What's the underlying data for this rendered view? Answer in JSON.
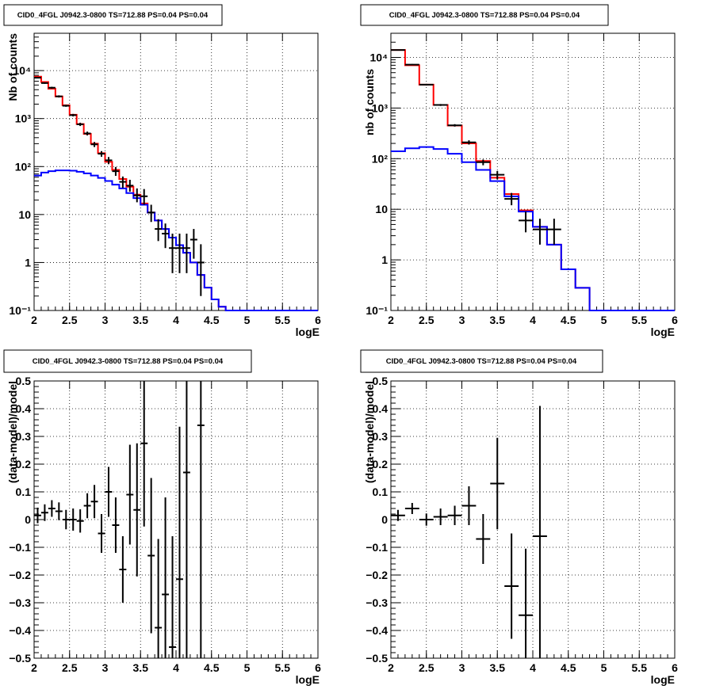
{
  "chart_data": [
    {
      "type": "step",
      "title": "CID0_4FGL J0942.3-0800 TS=712.88 PS=0.04 PS=0.04",
      "xlabel": "logE",
      "ylabel": "Nb of counts",
      "ylog": true,
      "xlim": [
        2,
        6
      ],
      "ylim": [
        0.1,
        60000
      ],
      "grid": true,
      "xticks": [
        "2",
        "2.5",
        "3",
        "3.5",
        "4",
        "4.5",
        "5",
        "5.5",
        "6"
      ],
      "yticks": [
        {
          "v": 0.1,
          "label": "10⁻¹"
        },
        {
          "v": 1,
          "label": "1"
        },
        {
          "v": 10,
          "label": "10"
        },
        {
          "v": 100,
          "label": "10²"
        },
        {
          "v": 1000,
          "label": "10³"
        },
        {
          "v": 10000,
          "label": "10⁴"
        }
      ],
      "bin_edges": [
        2.0,
        2.1,
        2.2,
        2.3,
        2.4,
        2.5,
        2.6,
        2.7,
        2.8,
        2.9,
        3.0,
        3.1,
        3.2,
        3.3,
        3.4,
        3.5,
        3.6,
        3.7,
        3.8,
        3.9,
        4.0,
        4.1,
        4.2,
        4.3,
        4.4,
        4.5,
        4.6,
        4.7,
        4.8,
        4.9,
        5.0,
        5.1,
        5.2,
        5.3,
        5.4,
        5.5,
        5.6,
        5.7,
        5.8,
        5.9,
        6.0
      ],
      "series": [
        {
          "color": "#ff0000",
          "values": [
            7500,
            5800,
            4200,
            2900,
            1900,
            1200,
            770,
            480,
            300,
            190,
            125,
            85,
            55,
            38,
            26,
            17,
            11,
            7.5,
            5,
            3.3,
            2.3,
            1.6,
            1.0,
            0.55,
            0.3,
            0.17,
            0.12,
            0.1,
            0.09,
            0.09,
            0.09,
            0.09,
            0.09,
            0.09,
            0.09,
            0.09,
            0.09,
            0.09,
            0.09,
            0.09
          ]
        },
        {
          "color": "#0000ff",
          "values": [
            65,
            75,
            80,
            83,
            83,
            82,
            78,
            72,
            65,
            58,
            50,
            42,
            35,
            28,
            22,
            16,
            11,
            7.5,
            5,
            3.3,
            2.3,
            1.6,
            1.0,
            0.55,
            0.3,
            0.17,
            0.12,
            0.1,
            0.09,
            0.09,
            0.09,
            0.09,
            0.09,
            0.09,
            0.09,
            0.09,
            0.09,
            0.09,
            0.09,
            0.09
          ]
        }
      ],
      "points": [
        {
          "x": 2.05,
          "y": 7100,
          "lo": 6900,
          "hi": 7300
        },
        {
          "x": 2.15,
          "y": 5500,
          "lo": 5300,
          "hi": 5700
        },
        {
          "x": 2.25,
          "y": 4400,
          "lo": 4200,
          "hi": 4600
        },
        {
          "x": 2.35,
          "y": 2900,
          "lo": 2750,
          "hi": 3050
        },
        {
          "x": 2.45,
          "y": 1850,
          "lo": 1760,
          "hi": 1940
        },
        {
          "x": 2.55,
          "y": 1180,
          "lo": 1110,
          "hi": 1250
        },
        {
          "x": 2.65,
          "y": 760,
          "lo": 700,
          "hi": 820
        },
        {
          "x": 2.75,
          "y": 490,
          "lo": 445,
          "hi": 535
        },
        {
          "x": 2.85,
          "y": 290,
          "lo": 255,
          "hi": 325
        },
        {
          "x": 2.95,
          "y": 185,
          "lo": 160,
          "hi": 210
        },
        {
          "x": 3.05,
          "y": 135,
          "lo": 112,
          "hi": 158
        },
        {
          "x": 3.15,
          "y": 80,
          "lo": 64,
          "hi": 98
        },
        {
          "x": 3.25,
          "y": 48,
          "lo": 36,
          "hi": 62
        },
        {
          "x": 3.35,
          "y": 40,
          "lo": 30,
          "hi": 53
        },
        {
          "x": 3.45,
          "y": 25,
          "lo": 18,
          "hi": 35
        },
        {
          "x": 3.55,
          "y": 24,
          "lo": 16,
          "hi": 34
        },
        {
          "x": 3.65,
          "y": 11,
          "lo": 7,
          "hi": 16
        },
        {
          "x": 3.75,
          "y": 5,
          "lo": 2.8,
          "hi": 8
        },
        {
          "x": 3.85,
          "y": 4,
          "lo": 2,
          "hi": 6.5
        },
        {
          "x": 3.95,
          "y": 2,
          "lo": 0.6,
          "hi": 4
        },
        {
          "x": 4.05,
          "y": 2,
          "lo": 0.6,
          "hi": 4
        },
        {
          "x": 4.15,
          "y": 2,
          "lo": 0.6,
          "hi": 4
        },
        {
          "x": 4.25,
          "y": 3,
          "lo": 1.2,
          "hi": 5
        },
        {
          "x": 4.35,
          "y": 1,
          "lo": 0.2,
          "hi": 2.4
        }
      ]
    },
    {
      "type": "step",
      "title": "CID0_4FGL J0942.3-0800 TS=712.88 PS=0.04 PS=0.04",
      "xlabel": "logE",
      "ylabel": "nb of counts",
      "ylog": true,
      "xlim": [
        2,
        6
      ],
      "ylim": [
        0.1,
        30000
      ],
      "grid": true,
      "xticks": [
        "2",
        "2.5",
        "3",
        "3.5",
        "4",
        "4.5",
        "5",
        "5.5",
        "6"
      ],
      "yticks": [
        {
          "v": 0.1,
          "label": "10⁻¹"
        },
        {
          "v": 1,
          "label": "1"
        },
        {
          "v": 10,
          "label": "10"
        },
        {
          "v": 100,
          "label": "10²"
        },
        {
          "v": 1000,
          "label": "10³"
        },
        {
          "v": 10000,
          "label": "10⁴"
        }
      ],
      "bin_edges": [
        2.0,
        2.2,
        2.4,
        2.6,
        2.8,
        3.0,
        3.2,
        3.4,
        3.6,
        3.8,
        4.0,
        4.2,
        4.4,
        4.6,
        4.8,
        5.0,
        5.2,
        5.4,
        5.6,
        5.8,
        6.0
      ],
      "series": [
        {
          "color": "#ff0000",
          "values": [
            14000,
            7000,
            2900,
            1150,
            450,
            200,
            90,
            42,
            20,
            9.5,
            4.5,
            2,
            0.65,
            0.28,
            0.1,
            0.1,
            0.1,
            0.1,
            0.1,
            0.1
          ]
        },
        {
          "color": "#0000ff",
          "values": [
            140,
            160,
            170,
            155,
            125,
            85,
            60,
            36,
            18,
            9,
            4.5,
            2,
            0.65,
            0.28,
            0.1,
            0.1,
            0.1,
            0.1,
            0.1,
            0.1
          ]
        }
      ],
      "points": [
        {
          "x": 2.1,
          "y": 14000,
          "lo": 13800,
          "hi": 14200
        },
        {
          "x": 2.3,
          "y": 7200,
          "lo": 7000,
          "hi": 7400
        },
        {
          "x": 2.5,
          "y": 2900,
          "lo": 2800,
          "hi": 3000
        },
        {
          "x": 2.7,
          "y": 1150,
          "lo": 1100,
          "hi": 1200
        },
        {
          "x": 2.9,
          "y": 455,
          "lo": 430,
          "hi": 480
        },
        {
          "x": 3.1,
          "y": 210,
          "lo": 190,
          "hi": 230
        },
        {
          "x": 3.3,
          "y": 85,
          "lo": 74,
          "hi": 96
        },
        {
          "x": 3.5,
          "y": 48,
          "lo": 39,
          "hi": 57
        },
        {
          "x": 3.7,
          "y": 16,
          "lo": 12,
          "hi": 21
        },
        {
          "x": 3.9,
          "y": 6,
          "lo": 3.5,
          "hi": 9
        },
        {
          "x": 4.1,
          "y": 4,
          "lo": 2,
          "hi": 6.5
        },
        {
          "x": 4.3,
          "y": 4,
          "lo": 2,
          "hi": 6.5
        }
      ]
    },
    {
      "type": "errorbar",
      "title": "CID0_4FGL J0942.3-0800 TS=712.88 PS=0.04 PS=0.04",
      "xlabel": "logE",
      "ylabel": "(data-model)/model",
      "ylog": false,
      "xlim": [
        2,
        6
      ],
      "ylim": [
        -0.5,
        0.5
      ],
      "grid": true,
      "bin_width": 0.1,
      "xticks": [
        "2",
        "2.5",
        "3",
        "3.5",
        "4",
        "4.5",
        "5",
        "5.5",
        "6"
      ],
      "yticks": [
        {
          "v": -0.5,
          "label": "−0.5"
        },
        {
          "v": -0.4,
          "label": "−0.4"
        },
        {
          "v": -0.3,
          "label": "−0.3"
        },
        {
          "v": -0.2,
          "label": "−0.2"
        },
        {
          "v": -0.1,
          "label": "−0.1"
        },
        {
          "v": 0,
          "label": "0"
        },
        {
          "v": 0.1,
          "label": "0.1"
        },
        {
          "v": 0.2,
          "label": "0.2"
        },
        {
          "v": 0.3,
          "label": "0.3"
        },
        {
          "v": 0.4,
          "label": "0.4"
        },
        {
          "v": 0.5,
          "label": "0.5"
        }
      ],
      "points": [
        {
          "x": 2.05,
          "y": 0.015,
          "err": 0.028
        },
        {
          "x": 2.15,
          "y": 0.025,
          "err": 0.03
        },
        {
          "x": 2.25,
          "y": 0.04,
          "err": 0.03
        },
        {
          "x": 2.35,
          "y": 0.03,
          "err": 0.032
        },
        {
          "x": 2.45,
          "y": 0.0,
          "err": 0.035
        },
        {
          "x": 2.55,
          "y": 0.0,
          "err": 0.04
        },
        {
          "x": 2.65,
          "y": -0.005,
          "err": 0.042
        },
        {
          "x": 2.75,
          "y": 0.05,
          "err": 0.045
        },
        {
          "x": 2.85,
          "y": 0.065,
          "err": 0.06
        },
        {
          "x": 2.95,
          "y": -0.05,
          "err": 0.07
        },
        {
          "x": 3.05,
          "y": 0.1,
          "err": 0.09
        },
        {
          "x": 3.15,
          "y": -0.02,
          "err": 0.1
        },
        {
          "x": 3.25,
          "y": -0.18,
          "err": 0.12
        },
        {
          "x": 3.35,
          "y": 0.09,
          "err": 0.18
        },
        {
          "x": 3.45,
          "y": 0.035,
          "err": 0.24
        },
        {
          "x": 3.55,
          "y": 0.275,
          "err": 0.3
        },
        {
          "x": 3.65,
          "y": -0.13,
          "err": 0.28
        },
        {
          "x": 3.75,
          "y": -0.39,
          "err": 0.32
        },
        {
          "x": 3.85,
          "y": -0.27,
          "err": 0.35
        },
        {
          "x": 3.95,
          "y": -0.46,
          "err": 0.4
        },
        {
          "x": 4.05,
          "y": -0.215,
          "err": 0.55
        },
        {
          "x": 4.15,
          "y": 0.17,
          "err": 0.7
        },
        {
          "x": 4.35,
          "y": 0.34,
          "err": 1.2
        }
      ]
    },
    {
      "type": "errorbar",
      "title": "CID0_4FGL J0942.3-0800 TS=712.88 PS=0.04 PS=0.04",
      "xlabel": "logE",
      "ylabel": "(data-model)/model",
      "ylog": false,
      "xlim": [
        2,
        6
      ],
      "ylim": [
        -0.5,
        0.5
      ],
      "grid": true,
      "bin_width": 0.2,
      "xticks": [
        "2",
        "2.5",
        "3",
        "3.5",
        "4",
        "4.5",
        "5",
        "5.5",
        "6"
      ],
      "yticks": [
        {
          "v": -0.5,
          "label": "−0.5"
        },
        {
          "v": -0.4,
          "label": "−0.4"
        },
        {
          "v": -0.3,
          "label": "−0.3"
        },
        {
          "v": -0.2,
          "label": "−0.2"
        },
        {
          "v": -0.1,
          "label": "−0.1"
        },
        {
          "v": 0,
          "label": "0"
        },
        {
          "v": 0.1,
          "label": "0.1"
        },
        {
          "v": 0.2,
          "label": "0.2"
        },
        {
          "v": 0.3,
          "label": "0.3"
        },
        {
          "v": 0.4,
          "label": "0.4"
        },
        {
          "v": 0.5,
          "label": "0.5"
        }
      ],
      "points": [
        {
          "x": 2.1,
          "y": 0.015,
          "err": 0.02
        },
        {
          "x": 2.3,
          "y": 0.04,
          "err": 0.02
        },
        {
          "x": 2.5,
          "y": 0.0,
          "err": 0.022
        },
        {
          "x": 2.7,
          "y": 0.01,
          "err": 0.03
        },
        {
          "x": 2.9,
          "y": 0.015,
          "err": 0.035
        },
        {
          "x": 3.1,
          "y": 0.05,
          "err": 0.07
        },
        {
          "x": 3.3,
          "y": -0.07,
          "err": 0.09
        },
        {
          "x": 3.5,
          "y": 0.13,
          "err": 0.165
        },
        {
          "x": 3.7,
          "y": -0.24,
          "err": 0.19
        },
        {
          "x": 3.9,
          "y": -0.345,
          "err": 0.24
        },
        {
          "x": 4.1,
          "y": -0.06,
          "err": 0.47
        }
      ]
    }
  ]
}
